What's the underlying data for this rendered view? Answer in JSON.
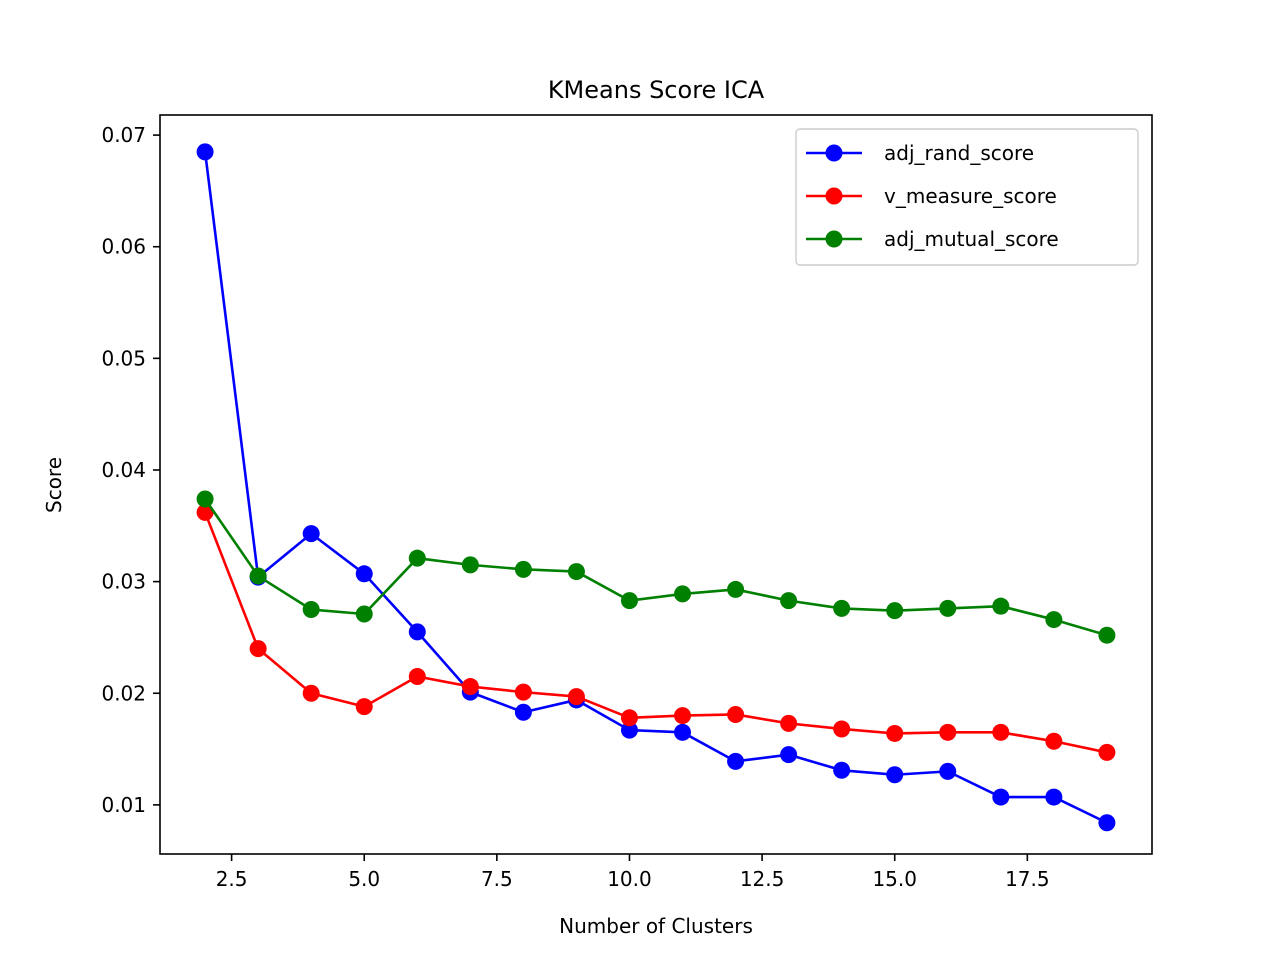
{
  "chart_data": {
    "type": "line",
    "title": "KMeans Score ICA",
    "xlabel": "Number of Clusters",
    "ylabel": "Score",
    "x": [
      2,
      3,
      4,
      5,
      6,
      7,
      8,
      9,
      10,
      11,
      12,
      13,
      14,
      15,
      16,
      17,
      18,
      19
    ],
    "xlim": [
      1.15,
      19.85
    ],
    "ylim": [
      0.0056,
      0.0718
    ],
    "xticks": [
      "2.5",
      "5.0",
      "7.5",
      "10.0",
      "12.5",
      "15.0",
      "17.5"
    ],
    "xtick_values": [
      2.5,
      5.0,
      7.5,
      10.0,
      12.5,
      15.0,
      17.5
    ],
    "yticks": [
      "0.01",
      "0.02",
      "0.03",
      "0.04",
      "0.05",
      "0.06",
      "0.07"
    ],
    "ytick_values": [
      0.01,
      0.02,
      0.03,
      0.04,
      0.05,
      0.06,
      0.07
    ],
    "grid": false,
    "legend_position": "top-right",
    "series": [
      {
        "name": "adj_rand_score",
        "color": "#0000ff",
        "marker": "circle",
        "values": [
          0.0685,
          0.0304,
          0.0343,
          0.0307,
          0.0255,
          0.0201,
          0.0183,
          0.0194,
          0.0167,
          0.0165,
          0.0139,
          0.0145,
          0.0131,
          0.0127,
          0.013,
          0.0107,
          0.0107,
          0.0084
        ]
      },
      {
        "name": "v_measure_score",
        "color": "#ff0000",
        "marker": "circle",
        "values": [
          0.0362,
          0.024,
          0.02,
          0.0188,
          0.0215,
          0.0206,
          0.0201,
          0.0197,
          0.0178,
          0.018,
          0.0181,
          0.0173,
          0.0168,
          0.0164,
          0.0165,
          0.0165,
          0.0157,
          0.0147
        ]
      },
      {
        "name": "adj_mutual_score",
        "color": "#008000",
        "marker": "circle",
        "values": [
          0.0374,
          0.0305,
          0.0275,
          0.0271,
          0.0321,
          0.0315,
          0.0311,
          0.0309,
          0.0283,
          0.0289,
          0.0293,
          0.0283,
          0.0276,
          0.0274,
          0.0276,
          0.0278,
          0.0266,
          0.0252
        ]
      }
    ]
  }
}
